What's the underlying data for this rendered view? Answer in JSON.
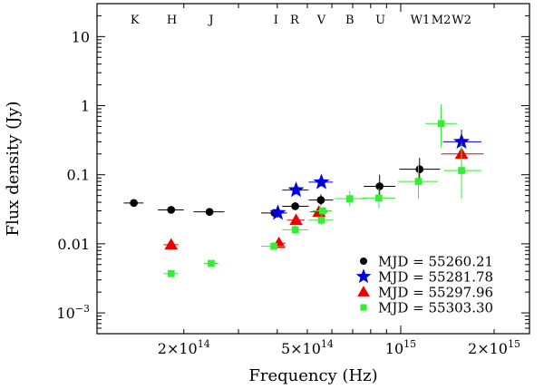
{
  "chart_data": {
    "type": "scatter",
    "title": "",
    "xlabel": "Frequency (Hz)",
    "ylabel": "Flux density (Jy)",
    "xscale": "log",
    "yscale": "log",
    "xlim": [
      105000000000000.0,
      2600000000000000.0
    ],
    "ylim": [
      0.0005,
      30
    ],
    "yticks": [
      {
        "value": 0.001,
        "base": "10",
        "exp": "−3"
      },
      {
        "value": 0.01,
        "label": "0.01"
      },
      {
        "value": 0.1,
        "label": "0.1"
      },
      {
        "value": 1,
        "label": "1"
      },
      {
        "value": 10,
        "label": "10"
      }
    ],
    "xticks": [
      {
        "value": 200000000000000.0,
        "mant": "2×10",
        "exp": "14"
      },
      {
        "value": 500000000000000.0,
        "mant": "5×10",
        "exp": "14"
      },
      {
        "value": 1000000000000000.0,
        "mant": "10",
        "exp": "15"
      },
      {
        "value": 2000000000000000.0,
        "mant": "2×10",
        "exp": "15"
      }
    ],
    "bands": [
      {
        "name": "K",
        "freq": 139000000000000.0
      },
      {
        "name": "H",
        "freq": 183000000000000.0
      },
      {
        "name": "J",
        "freq": 245000000000000.0
      },
      {
        "name": "I",
        "freq": 396000000000000.0
      },
      {
        "name": "R",
        "freq": 455000000000000.0
      },
      {
        "name": "V",
        "freq": 555000000000000.0
      },
      {
        "name": "B",
        "freq": 685000000000000.0
      },
      {
        "name": "U",
        "freq": 860000000000000.0
      },
      {
        "name": "W1",
        "freq": 1155000000000000.0
      },
      {
        "name": "M2",
        "freq": 1350000000000000.0
      },
      {
        "name": "W2",
        "freq": 1570000000000000.0
      }
    ],
    "legend_position": "bottom-right",
    "series": [
      {
        "name": "MJD = 55260.21",
        "color": "#000000",
        "marker": "circle",
        "points": [
          {
            "x": 138000000000000.0,
            "y": 0.039,
            "xerr": [
              128000000000000.0,
              148000000000000.0
            ],
            "yerr": [
              0.036,
              0.042
            ]
          },
          {
            "x": 182000000000000.0,
            "y": 0.031,
            "xerr": [
              165000000000000.0,
              200000000000000.0
            ],
            "yerr": [
              0.029,
              0.033
            ]
          },
          {
            "x": 242000000000000.0,
            "y": 0.029,
            "xerr": [
              215000000000000.0,
              270000000000000.0
            ],
            "yerr": [
              0.027,
              0.031
            ]
          },
          {
            "x": 392000000000000.0,
            "y": 0.028,
            "xerr": [
              355000000000000.0,
              430000000000000.0
            ],
            "yerr": [
              0.026,
              0.03
            ]
          },
          {
            "x": 457000000000000.0,
            "y": 0.035,
            "xerr": [
              415000000000000.0,
              505000000000000.0
            ],
            "yerr": [
              0.031,
              0.04
            ]
          },
          {
            "x": 553000000000000.0,
            "y": 0.043,
            "xerr": [
              505000000000000.0,
              605000000000000.0
            ],
            "yerr": [
              0.036,
              0.052
            ]
          },
          {
            "x": 855000000000000.0,
            "y": 0.068,
            "xerr": [
              760000000000000.0,
              960000000000000.0
            ],
            "yerr": [
              0.05,
              0.1
            ]
          },
          {
            "x": 1150000000000000.0,
            "y": 0.12,
            "xerr": [
              990000000000000.0,
              1340000000000000.0
            ],
            "yerr": [
              0.085,
              0.175
            ]
          }
        ]
      },
      {
        "name": "MJD = 55281.78",
        "color": "#0000dd",
        "marker": "star",
        "points": [
          {
            "x": 402000000000000.0,
            "y": 0.028,
            "xerr": [
              385000000000000.0,
              420000000000000.0
            ],
            "yerr": [
              0.024,
              0.033
            ]
          },
          {
            "x": 460000000000000.0,
            "y": 0.06,
            "xerr": [
              415000000000000.0,
              505000000000000.0
            ],
            "yerr": [
              0.052,
              0.07
            ]
          },
          {
            "x": 555000000000000.0,
            "y": 0.078,
            "xerr": [
              505000000000000.0,
              605000000000000.0
            ],
            "yerr": [
              0.068,
              0.09
            ]
          },
          {
            "x": 1570000000000000.0,
            "y": 0.3,
            "xerr": [
              1370000000000000.0,
              1820000000000000.0
            ],
            "yerr": [
              0.21,
              0.45
            ]
          }
        ]
      },
      {
        "name": "MJD = 55297.96",
        "color": "#ee0000",
        "marker": "triangle",
        "points": [
          {
            "x": 182000000000000.0,
            "y": 0.0097,
            "xerr": [
              172000000000000.0,
              192000000000000.0
            ],
            "yerr": [
              0.009,
              0.0105
            ]
          },
          {
            "x": 405000000000000.0,
            "y": 0.0102,
            "xerr": [
              385000000000000.0,
              425000000000000.0
            ],
            "yerr": [
              0.0093,
              0.0112
            ]
          },
          {
            "x": 460000000000000.0,
            "y": 0.022,
            "xerr": [
              430000000000000.0,
              490000000000000.0
            ],
            "yerr": [
              0.02,
              0.024
            ]
          },
          {
            "x": 545000000000000.0,
            "y": 0.029,
            "xerr": [
              510000000000000.0,
              580000000000000.0
            ],
            "yerr": [
              0.026,
              0.032
            ]
          },
          {
            "x": 1570000000000000.0,
            "y": 0.2,
            "xerr": [
              1350000000000000.0,
              1850000000000000.0
            ],
            "yerr": [
              0.13,
              0.3
            ]
          }
        ]
      },
      {
        "name": "MJD = 55303.30",
        "color": "#33ee33",
        "marker": "square",
        "points": [
          {
            "x": 182000000000000.0,
            "y": 0.0037,
            "xerr": [
              172000000000000.0,
              192000000000000.0
            ],
            "yerr": [
              0.0034,
              0.004
            ]
          },
          {
            "x": 245000000000000.0,
            "y": 0.0052,
            "xerr": [
              232000000000000.0,
              258000000000000.0
            ],
            "yerr": [
              0.0049,
              0.0055
            ]
          },
          {
            "x": 390000000000000.0,
            "y": 0.0092,
            "xerr": [
              355000000000000.0,
              425000000000000.0
            ],
            "yerr": [
              0.0086,
              0.0099
            ]
          },
          {
            "x": 457000000000000.0,
            "y": 0.016,
            "xerr": [
              415000000000000.0,
              505000000000000.0
            ],
            "yerr": [
              0.014,
              0.019
            ]
          },
          {
            "x": 555000000000000.0,
            "y": 0.022,
            "xerr": [
              505000000000000.0,
              605000000000000.0
            ],
            "yerr": [
              0.019,
              0.026
            ]
          },
          {
            "x": 560000000000000.0,
            "y": 0.03,
            "xerr": [
              520000000000000.0,
              600000000000000.0
            ],
            "yerr": [
              0.026,
              0.034
            ]
          },
          {
            "x": 685000000000000.0,
            "y": 0.045,
            "xerr": [
              610000000000000.0,
              770000000000000.0
            ],
            "yerr": [
              0.035,
              0.058
            ]
          },
          {
            "x": 850000000000000.0,
            "y": 0.046,
            "xerr": [
              750000000000000.0,
              960000000000000.0
            ],
            "yerr": [
              0.033,
              0.064
            ]
          },
          {
            "x": 1140000000000000.0,
            "y": 0.08,
            "xerr": [
              980000000000000.0,
              1320000000000000.0
            ],
            "yerr": [
              0.045,
              0.14
            ]
          },
          {
            "x": 1350000000000000.0,
            "y": 0.55,
            "xerr": [
              1200000000000000.0,
              1520000000000000.0
            ],
            "yerr": [
              0.25,
              1.05
            ]
          },
          {
            "x": 1570000000000000.0,
            "y": 0.115,
            "xerr": [
              1380000000000000.0,
              1820000000000000.0
            ],
            "yerr": [
              0.045,
              0.28
            ]
          }
        ]
      }
    ]
  }
}
